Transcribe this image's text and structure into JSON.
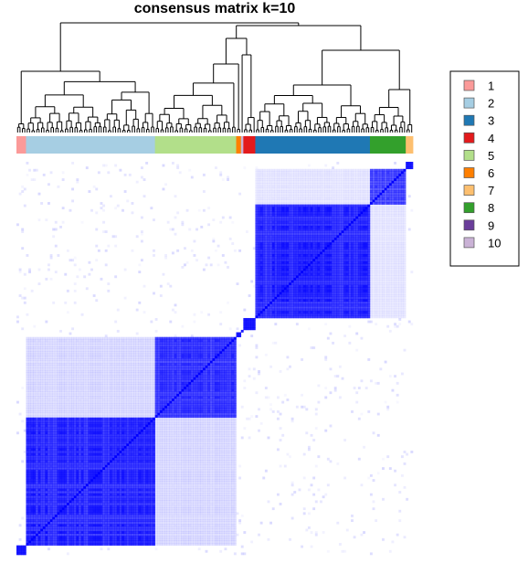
{
  "chart_data": {
    "type": "heatmap",
    "title": "consensus matrix k=10",
    "subtitle": "",
    "xlabel": "",
    "ylabel": "",
    "value_range": [
      0,
      1
    ],
    "color_low": "#ffffff",
    "color_high": "#0000ff",
    "dendrogram": "top",
    "legend_placement": "right",
    "clusters": [
      {
        "label": "1",
        "color": "#fb9a99",
        "size": 4
      },
      {
        "label": "2",
        "color": "#a6cee3",
        "size": 54
      },
      {
        "label": "5",
        "color": "#b2df8a",
        "size": 34
      },
      {
        "label": "6",
        "color": "#ff7f00",
        "size": 2
      },
      {
        "label": "10",
        "color": "#cab2d6",
        "size": 1
      },
      {
        "label": "4",
        "color": "#e31a1c",
        "size": 5
      },
      {
        "label": "3",
        "color": "#1f78b4",
        "size": 48
      },
      {
        "label": "8",
        "color": "#33a02c",
        "size": 15
      },
      {
        "label": "7",
        "color": "#fdbf6f",
        "size": 3
      }
    ],
    "blocks": [
      {
        "rows": "2",
        "cols": "2",
        "value": 0.95
      },
      {
        "rows": "5",
        "cols": "5",
        "value": 0.9
      },
      {
        "rows": "3",
        "cols": "3",
        "value": 0.95
      },
      {
        "rows": "8",
        "cols": "8",
        "value": 0.8
      },
      {
        "rows": "2",
        "cols": "5",
        "value": 0.15
      },
      {
        "rows": "3",
        "cols": "8",
        "value": 0.1
      }
    ],
    "legend": [
      {
        "label": "1",
        "color": "#fb9a99"
      },
      {
        "label": "2",
        "color": "#a6cee3"
      },
      {
        "label": "3",
        "color": "#1f78b4"
      },
      {
        "label": "4",
        "color": "#e31a1c"
      },
      {
        "label": "5",
        "color": "#b2df8a"
      },
      {
        "label": "6",
        "color": "#ff7f00"
      },
      {
        "label": "7",
        "color": "#fdbf6f"
      },
      {
        "label": "8",
        "color": "#33a02c"
      },
      {
        "label": "9",
        "color": "#6a3d9a"
      },
      {
        "label": "10",
        "color": "#cab2d6"
      }
    ]
  }
}
